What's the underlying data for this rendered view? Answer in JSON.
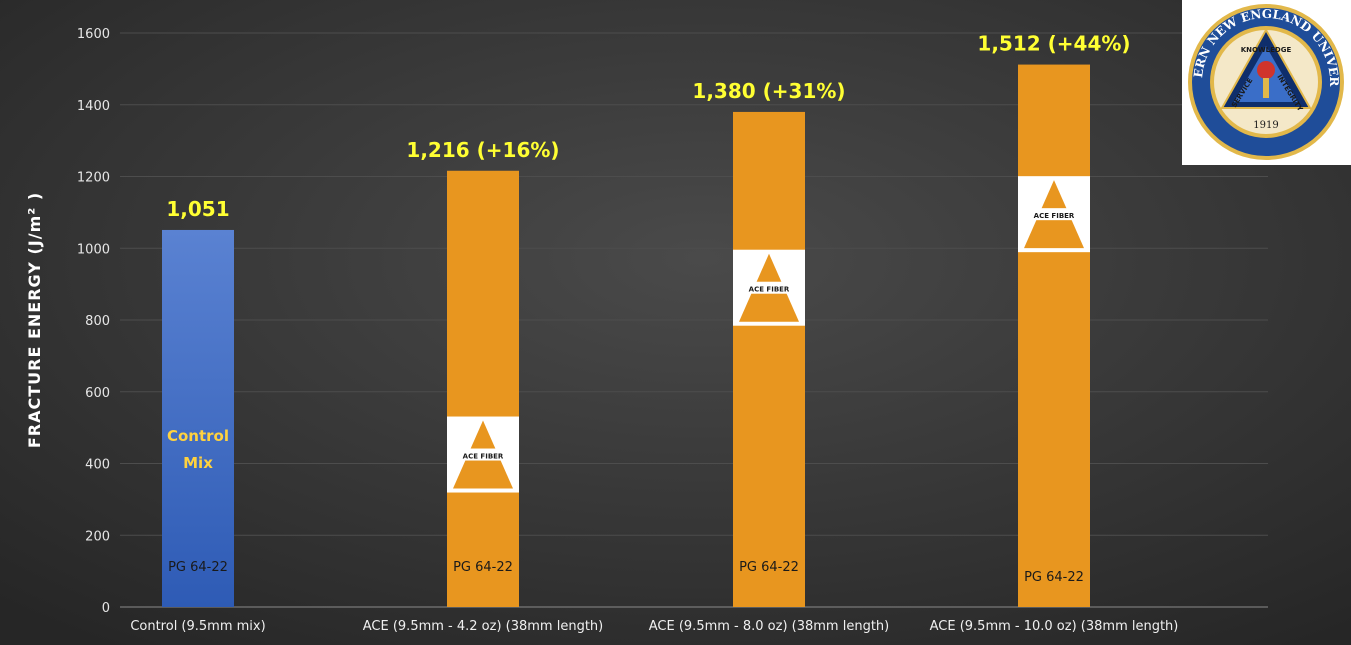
{
  "chart_data": {
    "type": "bar",
    "categories": [
      "Control (9.5mm mix)",
      "ACE (9.5mm - 4.2 oz) (38mm length)",
      "ACE (9.5mm - 8.0 oz) (38mm length)",
      "ACE (9.5mm - 10.0 oz) (38mm length)"
    ],
    "values": [
      1051,
      1216,
      1380,
      1512
    ],
    "data_labels": [
      "1,051",
      "1,216 (+16%)",
      "1,380 (+31%)",
      "1,512 (+44%)"
    ],
    "bar_inner_labels": [
      "PG 64-22",
      "PG 64-22",
      "PG 64-22",
      "PG 64-22"
    ],
    "control_label": [
      "Control",
      "Mix"
    ],
    "badge_text": "ACE FIBER",
    "badge_centers": [
      null,
      425,
      890,
      1095
    ],
    "title": "",
    "xlabel": "",
    "ylabel": "FRACTURE ENERGY (J/m² )",
    "ylim": [
      0,
      1600
    ],
    "yticks": [
      0,
      200,
      400,
      600,
      800,
      1000,
      1200,
      1400,
      1600
    ],
    "grid": true,
    "legend": "none",
    "colors": {
      "control": "#4a72c8",
      "ace": "#e8961f",
      "label": "#ffff33",
      "background": "#333333",
      "grid": "#4d4d4d"
    }
  },
  "seal": {
    "top_text": "WESTERN NEW ENGLAND UNIVERSITY",
    "motto_top": "KNOWLEDGE",
    "motto_left": "SERVICE",
    "motto_right": "INTEGRITY",
    "year": "1919"
  }
}
